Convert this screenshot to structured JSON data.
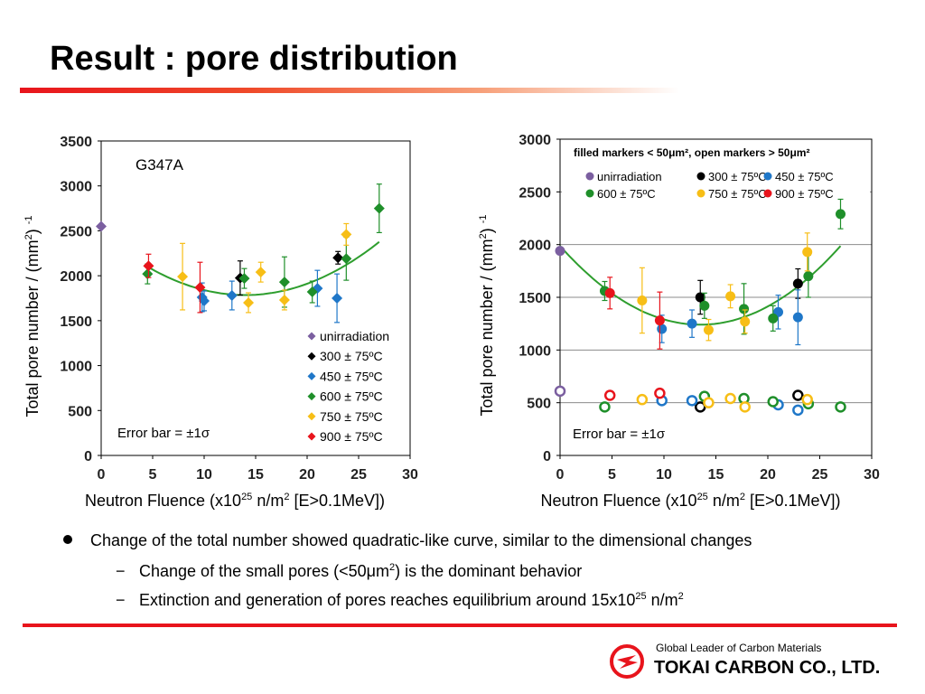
{
  "slide": {
    "title": "Result : pore distribution",
    "bullets": {
      "main": "Change of the total number showed quadratic-like curve, similar to the dimensional changes",
      "sub1_pre": "Change of the small pores (<50μm",
      "sub1_sup": "2",
      "sub1_post": ") is the dominant behavior",
      "sub2_pre": "Extinction and generation of pores reaches equilibrium around 15x10",
      "sub2_sup": "25",
      "sub2_post": " n/m",
      "sub2_sup2": "2",
      "dash_glyph": "−"
    },
    "footer": {
      "tagline": "Global Leader of Carbon Materials",
      "company": "TOKAI CARBON CO., LTD.",
      "logo_icon": "tokai-carbon-logo-icon",
      "logo_color": "#e8141c"
    }
  },
  "chart_data": [
    {
      "type": "scatter",
      "title": "G347A",
      "xlabel_pre": "Neutron Fluence (x10",
      "xlabel_sup": "25",
      "xlabel_mid": " n/m",
      "xlabel_sup2": "2",
      "xlabel_post": " [E>0.1MeV])",
      "ylabel_pre": "Total pore number / (mm",
      "ylabel_sup": "2",
      "ylabel_post": ") ",
      "ylabel_sup2": "-1",
      "xlim": [
        0,
        30
      ],
      "ylim": [
        0,
        3500
      ],
      "xticks": [
        0,
        5,
        10,
        15,
        20,
        25,
        30
      ],
      "yticks": [
        0,
        500,
        1000,
        1500,
        2000,
        2500,
        3000,
        3500
      ],
      "xtick_labels": [
        "0",
        "5",
        "10",
        "15",
        "20",
        "25",
        "30"
      ],
      "ytick_labels": [
        "0",
        "500",
        "1000",
        "1500",
        "2000",
        "2500",
        "3000",
        "3500"
      ],
      "marker": "diamond",
      "grid": false,
      "legend_position": "bottom-right",
      "annotation": "Error bar = ±1σ",
      "series": [
        {
          "name": "unirradiation",
          "color": "#7b5fa0",
          "points": [
            {
              "x": 0,
              "y": 2550,
              "err": 0
            }
          ]
        },
        {
          "name": "300 ± 75ºC",
          "color": "#000000",
          "points": [
            {
              "x": 13.5,
              "y": 1975,
              "err": 190
            },
            {
              "x": 23,
              "y": 2200,
              "err": 70
            }
          ]
        },
        {
          "name": "450 ± 75ºC",
          "color": "#1f77c8",
          "points": [
            {
              "x": 9.8,
              "y": 1760,
              "err": 160
            },
            {
              "x": 10,
              "y": 1720,
              "err": 110
            },
            {
              "x": 12.7,
              "y": 1780,
              "err": 160
            },
            {
              "x": 21,
              "y": 1860,
              "err": 200
            },
            {
              "x": 22.9,
              "y": 1750,
              "err": 270
            }
          ]
        },
        {
          "name": "600 ± 75ºC",
          "color": "#1f8f2a",
          "points": [
            {
              "x": 4.5,
              "y": 2020,
              "err": 110
            },
            {
              "x": 13.9,
              "y": 1970,
              "err": 110
            },
            {
              "x": 17.8,
              "y": 1930,
              "err": 280
            },
            {
              "x": 20.5,
              "y": 1820,
              "err": 120
            },
            {
              "x": 23.8,
              "y": 2190,
              "err": 240
            },
            {
              "x": 27,
              "y": 2750,
              "err": 270
            }
          ]
        },
        {
          "name": "750 ± 75ºC",
          "color": "#f7be16",
          "points": [
            {
              "x": 7.9,
              "y": 1990,
              "err": 370
            },
            {
              "x": 14.3,
              "y": 1700,
              "err": 110
            },
            {
              "x": 15.5,
              "y": 2040,
              "err": 110
            },
            {
              "x": 17.8,
              "y": 1730,
              "err": 110
            },
            {
              "x": 23.8,
              "y": 2460,
              "err": 120
            }
          ]
        },
        {
          "name": "900 ± 75ºC",
          "color": "#e8141c",
          "points": [
            {
              "x": 4.6,
              "y": 2110,
              "err": 130
            },
            {
              "x": 9.6,
              "y": 1870,
              "err": 280
            }
          ]
        }
      ],
      "fit_curve": {
        "color": "#2e9e2e",
        "x_range": [
          4.5,
          27
        ],
        "a": 3.5,
        "h": 14,
        "k": 1785
      }
    },
    {
      "type": "scatter",
      "title": "",
      "header_note": "filled markers < 50μm², open markers > 50μm²",
      "xlabel_pre": "Neutron Fluence (x10",
      "xlabel_sup": "25",
      "xlabel_mid": " n/m",
      "xlabel_sup2": "2",
      "xlabel_post": " [E>0.1MeV])",
      "ylabel_pre": "Total pore number / (mm",
      "ylabel_sup": "2",
      "ylabel_post": ") ",
      "ylabel_sup2": "-1",
      "xlim": [
        0,
        30
      ],
      "ylim": [
        0,
        3000
      ],
      "xticks": [
        0,
        5,
        10,
        15,
        20,
        25,
        30
      ],
      "yticks": [
        0,
        500,
        1000,
        1500,
        2000,
        2500,
        3000
      ],
      "xtick_labels": [
        "0",
        "5",
        "10",
        "15",
        "20",
        "25",
        "30"
      ],
      "ytick_labels": [
        "0",
        "500",
        "1000",
        "1500",
        "2000",
        "2500",
        "3000"
      ],
      "marker": "circle",
      "grid": true,
      "legend_position": "top",
      "annotation": "Error bar = ±1σ",
      "series": [
        {
          "name": "unirradiation",
          "color": "#7b5fa0",
          "filled": [
            {
              "x": 0,
              "y": 1940,
              "err": 0
            }
          ],
          "open": [
            {
              "x": 0,
              "y": 610
            }
          ]
        },
        {
          "name": "300 ± 75ºC",
          "color": "#000000",
          "filled": [
            {
              "x": 13.5,
              "y": 1500,
              "err": 160
            },
            {
              "x": 22.9,
              "y": 1630,
              "err": 140
            }
          ],
          "open": [
            {
              "x": 13.5,
              "y": 460
            },
            {
              "x": 22.9,
              "y": 570
            }
          ]
        },
        {
          "name": "450 ± 75ºC",
          "color": "#1f77c8",
          "filled": [
            {
              "x": 9.8,
              "y": 1200,
              "err": 130
            },
            {
              "x": 12.7,
              "y": 1250,
              "err": 130
            },
            {
              "x": 21,
              "y": 1360,
              "err": 160
            },
            {
              "x": 22.9,
              "y": 1310,
              "err": 260
            }
          ],
          "open": [
            {
              "x": 9.8,
              "y": 520
            },
            {
              "x": 12.7,
              "y": 520
            },
            {
              "x": 21,
              "y": 480
            },
            {
              "x": 22.9,
              "y": 430
            }
          ]
        },
        {
          "name": "600 ± 75ºC",
          "color": "#1f8f2a",
          "filled": [
            {
              "x": 4.3,
              "y": 1560,
              "err": 90
            },
            {
              "x": 13.9,
              "y": 1420,
              "err": 120
            },
            {
              "x": 17.7,
              "y": 1390,
              "err": 240
            },
            {
              "x": 20.5,
              "y": 1300,
              "err": 120
            },
            {
              "x": 23.9,
              "y": 1700,
              "err": 200
            },
            {
              "x": 27,
              "y": 2290,
              "err": 140
            }
          ],
          "open": [
            {
              "x": 4.3,
              "y": 460
            },
            {
              "x": 13.9,
              "y": 560
            },
            {
              "x": 17.7,
              "y": 540
            },
            {
              "x": 20.5,
              "y": 510
            },
            {
              "x": 23.9,
              "y": 490
            },
            {
              "x": 27,
              "y": 460
            }
          ]
        },
        {
          "name": "750 ± 75ºC",
          "color": "#f7be16",
          "filled": [
            {
              "x": 7.9,
              "y": 1470,
              "err": 310
            },
            {
              "x": 14.3,
              "y": 1190,
              "err": 100
            },
            {
              "x": 16.4,
              "y": 1510,
              "err": 110
            },
            {
              "x": 17.8,
              "y": 1270,
              "err": 110
            },
            {
              "x": 23.8,
              "y": 1930,
              "err": 180
            }
          ],
          "open": [
            {
              "x": 7.9,
              "y": 530
            },
            {
              "x": 14.3,
              "y": 500
            },
            {
              "x": 16.4,
              "y": 540
            },
            {
              "x": 17.8,
              "y": 460
            },
            {
              "x": 23.8,
              "y": 530
            }
          ]
        },
        {
          "name": "900 ± 75ºC",
          "color": "#e8141c",
          "filled": [
            {
              "x": 4.8,
              "y": 1540,
              "err": 150
            },
            {
              "x": 9.6,
              "y": 1280,
              "err": 270
            }
          ],
          "open": [
            {
              "x": 4.8,
              "y": 570
            },
            {
              "x": 9.6,
              "y": 590
            }
          ]
        }
      ],
      "fit_curve": {
        "color": "#2e9e2e",
        "x_range": [
          0,
          27
        ],
        "a": 4.1,
        "h": 13.5,
        "k": 1240
      }
    }
  ]
}
